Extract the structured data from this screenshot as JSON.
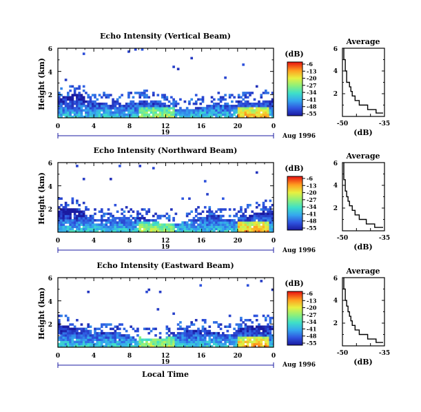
{
  "chart_data": [
    {
      "type": "heatmap",
      "title": "Echo Intensity (Vertical Beam)",
      "ylabel": "Height (km)",
      "x_ticks": [
        "0",
        "4",
        "8",
        "12",
        "16",
        "20",
        "0"
      ],
      "y_ticks": [
        "2",
        "4",
        "6"
      ],
      "xlim": [
        0,
        24
      ],
      "ylim": [
        0,
        6
      ],
      "date_bar_label": "19",
      "date_label": "Aug 1996",
      "colorbar": {
        "unit": "(dB)",
        "ticks": [
          "-6",
          "-13",
          "-20",
          "-27",
          "-34",
          "-41",
          "-48",
          "-55"
        ],
        "range": [
          -55,
          -6
        ]
      },
      "profile": {
        "title": "Average",
        "xlabel": "(dB)",
        "x_ticks": [
          "-50",
          "-35"
        ],
        "y_ticks": [
          "2",
          "4",
          "6"
        ],
        "xlim": [
          -50,
          -35
        ],
        "height_km": [
          0.3,
          0.6,
          1.0,
          1.4,
          1.8,
          2.2,
          2.6,
          3.0,
          3.5,
          4.0,
          4.5,
          5.0,
          5.5,
          6.0
        ],
        "db": [
          -35.5,
          -38,
          -41,
          -44,
          -45.5,
          -46.5,
          -47,
          -47.5,
          -48.5,
          -48.5,
          -49,
          -49,
          -49.5,
          -49.5
        ]
      }
    },
    {
      "type": "heatmap",
      "title": "Echo Intensity (Northward Beam)",
      "ylabel": "Height (km)",
      "x_ticks": [
        "0",
        "4",
        "8",
        "12",
        "16",
        "20",
        "0"
      ],
      "y_ticks": [
        "2",
        "4",
        "6"
      ],
      "xlim": [
        0,
        24
      ],
      "ylim": [
        0,
        6
      ],
      "date_bar_label": "19",
      "date_label": "Aug 1996",
      "colorbar": {
        "unit": "(dB)",
        "ticks": [
          "-6",
          "-13",
          "-20",
          "-27",
          "-34",
          "-41",
          "-48",
          "-55"
        ],
        "range": [
          -55,
          -6
        ]
      },
      "profile": {
        "title": "Average",
        "xlabel": "(dB)",
        "x_ticks": [
          "-50",
          "-35"
        ],
        "y_ticks": [
          "2",
          "4",
          "6"
        ],
        "xlim": [
          -50,
          -35
        ],
        "height_km": [
          0.3,
          0.6,
          1.0,
          1.4,
          1.8,
          2.2,
          2.6,
          3.0,
          3.5,
          4.0,
          4.5,
          5.0,
          5.5,
          6.0
        ],
        "db": [
          -35.5,
          -38.5,
          -41.5,
          -44,
          -45.5,
          -46.5,
          -47.5,
          -48,
          -48.5,
          -49,
          -49,
          -49.5,
          -49.5,
          -49.5
        ]
      }
    },
    {
      "type": "heatmap",
      "title": "Echo Intensity (Eastward Beam)",
      "ylabel": "Height (km)",
      "xlabel": "Local Time",
      "x_ticks": [
        "0",
        "4",
        "8",
        "12",
        "16",
        "20",
        "0"
      ],
      "y_ticks": [
        "2",
        "4",
        "6"
      ],
      "xlim": [
        0,
        24
      ],
      "ylim": [
        0,
        6
      ],
      "date_bar_label": "19",
      "date_label": "Aug 1996",
      "colorbar": {
        "unit": "(dB)",
        "ticks": [
          "-6",
          "-13",
          "-20",
          "-27",
          "-34",
          "-41",
          "-48",
          "-55"
        ],
        "range": [
          -55,
          -6
        ]
      },
      "profile": {
        "title": "Average",
        "xlabel": "(dB)",
        "x_ticks": [
          "-50",
          "-35"
        ],
        "y_ticks": [
          "2",
          "4",
          "6"
        ],
        "xlim": [
          -50,
          -35
        ],
        "height_km": [
          0.3,
          0.6,
          1.0,
          1.4,
          1.8,
          2.2,
          2.6,
          3.0,
          3.5,
          4.0,
          4.5,
          5.0,
          5.5,
          6.0
        ],
        "db": [
          -35.5,
          -38,
          -41,
          -44,
          -45.5,
          -46.5,
          -47,
          -47.5,
          -48,
          -48.5,
          -49,
          -49,
          -49.5,
          -49.5
        ]
      }
    }
  ]
}
